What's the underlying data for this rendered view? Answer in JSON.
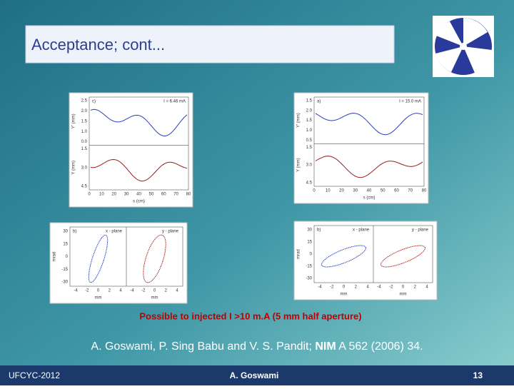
{
  "title": "Acceptance; cont...",
  "figures": [
    {
      "panel": "c)",
      "annotation": "I = 6.46 mA",
      "top": {
        "ylabel": "Y' (mm)",
        "yticks": [
          "2.5",
          "2.0",
          "1.5",
          "1.0",
          "0.0"
        ]
      },
      "bottom": {
        "ylabel": "Y (mm)",
        "yticks": [
          "1.5",
          "3.0",
          "4.5"
        ]
      },
      "xticks": [
        "0",
        "10",
        "20",
        "30",
        "40",
        "50",
        "60",
        "70",
        "80"
      ],
      "xlabel": "s (cm)"
    },
    {
      "panel": "a)",
      "annotation": "I = 15.0 mA",
      "top": {
        "ylabel": "Y' (mm)",
        "yticks": [
          "1.5",
          "2.0",
          "1.5",
          "1.0",
          "0.5"
        ]
      },
      "bottom": {
        "ylabel": "Y (mm)",
        "yticks": [
          "1.5",
          "3.0",
          "4.5"
        ]
      },
      "xticks": [
        "0",
        "10",
        "20",
        "30",
        "40",
        "50",
        "60",
        "70",
        "80"
      ],
      "xlabel": "s (cm)"
    },
    {
      "panel": "b)",
      "labels": [
        "x - plane",
        "y - plane"
      ],
      "ylabel": "mrad",
      "yticks": [
        "30",
        "15",
        "0",
        "-15",
        "-30"
      ],
      "xticks": [
        "-4",
        "-2",
        "0",
        "2",
        "4",
        "-4",
        "-2",
        "0",
        "2",
        "4"
      ],
      "xlabel": "mm"
    },
    {
      "panel": "b)",
      "labels": [
        "x - plane",
        "y - plane"
      ],
      "ylabel": "mrad",
      "yticks": [
        "30",
        "15",
        "0",
        "-15",
        "-30"
      ],
      "xticks": [
        "-4",
        "-2",
        "0",
        "2",
        "4",
        "-4",
        "-2",
        "0",
        "2",
        "4"
      ],
      "xlabel": "mm"
    }
  ],
  "caption": "Possible to injected I >10 m.A (5 mm half aperture)",
  "reference": {
    "before": "A. Goswami, P. Sing Babu and V. S. Pandit; ",
    "journal": "NIM",
    "after": " A 562 (2006) 34."
  },
  "footer": {
    "left": "UFCYC-2012",
    "center": "A. Goswami",
    "right": "13"
  }
}
